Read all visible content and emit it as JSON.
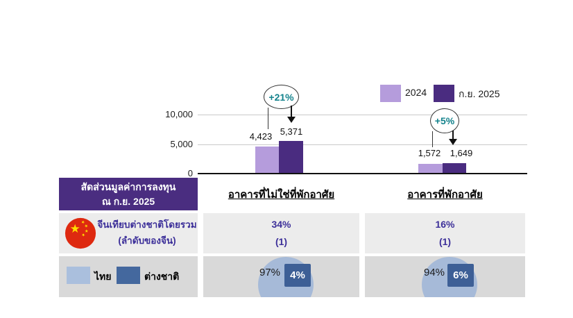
{
  "colors": {
    "bar_2024": "#b59cdc",
    "bar_2025": "#4a2c80",
    "header_bg": "#4a2d80",
    "growth_text": "#13828c",
    "table_text": "#3c2f99",
    "row2_bg": "#ececec",
    "row3_bg": "#d9d9d9",
    "thai_blue": "#aabfdd",
    "foreign_blue": "#44689e",
    "pie_fill": "#a6bad8",
    "pie_badge": "#3d5f96",
    "flag_red": "#de2910",
    "flag_yellow": "#ffde00"
  },
  "chart_data": {
    "type": "bar",
    "title": "",
    "categories": [
      "อาคารที่ไม่ใช่ที่พักอาศัย",
      "อาคารที่พักอาศัย"
    ],
    "series": [
      {
        "name": "2024",
        "values": [
          4423,
          1572
        ],
        "color": "#b59cdc"
      },
      {
        "name": "ก.ย. 2025",
        "values": [
          5371,
          1649
        ],
        "color": "#4a2c80"
      }
    ],
    "value_labels": [
      [
        "4,423",
        "5,371"
      ],
      [
        "1,572",
        "1,649"
      ]
    ],
    "growth_annotations": [
      "+21%",
      "+5%"
    ],
    "yticks": [
      "10,000",
      "5,000",
      "0"
    ],
    "ylim": [
      0,
      10000
    ],
    "grid": true,
    "legend_position": "top-right"
  },
  "legend": {
    "items": [
      {
        "label": "2024"
      },
      {
        "label": "ก.ย. 2025"
      }
    ]
  },
  "table": {
    "header_line1": "สัดส่วนมูลค่าการลงทุน",
    "header_line2": "ณ ก.ย. 2025",
    "china_row": {
      "icon": "china-flag",
      "label_line1": "จีนเทียบต่างชาติโดยรวม",
      "label_line2": "(ลำดับของจีน)",
      "cols": [
        {
          "pct": "34%",
          "rank": "(1)"
        },
        {
          "pct": "16%",
          "rank": "(1)"
        }
      ]
    },
    "share_row": {
      "legend": [
        {
          "label": "ไทย"
        },
        {
          "label": "ต่างชาติ"
        }
      ],
      "pies": [
        {
          "thai_pct": "97%",
          "foreign_pct": "4%"
        },
        {
          "thai_pct": "94%",
          "foreign_pct": "6%"
        }
      ]
    }
  }
}
